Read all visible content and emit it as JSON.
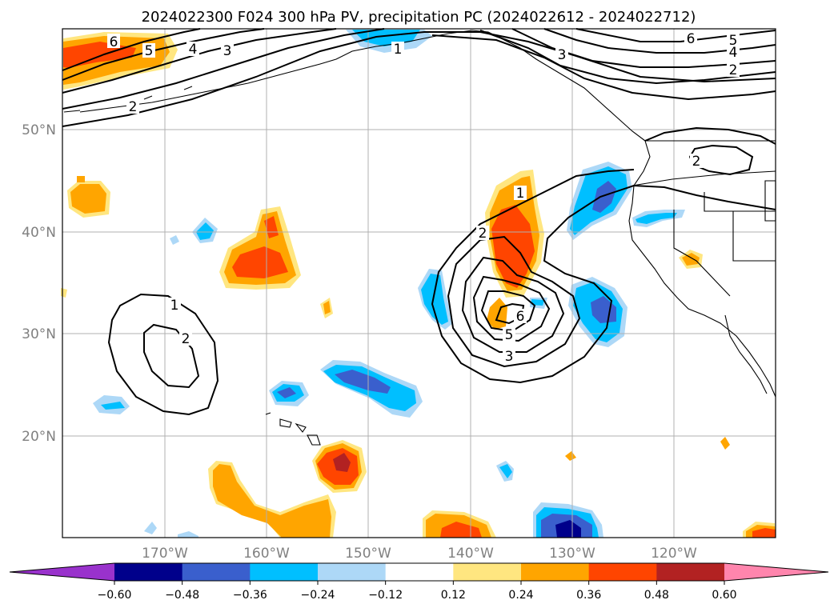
{
  "title": "2024022300 F024 300 hPa PV, precipitation PC (2024022612 - 2024022712)",
  "latitude_labels": [
    "50°N",
    "40°N",
    "30°N",
    "20°N"
  ],
  "longitude_labels": [
    "170°W",
    "160°W",
    "150°W",
    "140°W",
    "130°W",
    "120°W"
  ],
  "colorbar": {
    "tick_labels": [
      "−0.60",
      "−0.48",
      "−0.36",
      "−0.24",
      "−0.12",
      "0.12",
      "0.24",
      "0.36",
      "0.48",
      "0.60"
    ],
    "colors": [
      "#9932cc",
      "#00008b",
      "#3a5fcd",
      "#00bfff",
      "#add8f7",
      "#ffffff",
      "#ffe680",
      "#ffa500",
      "#ff4500",
      "#b22222",
      "#ff85ad"
    ]
  },
  "pv_contour_labels": {
    "north_jet": [
      "6",
      "5",
      "4",
      "3",
      "2"
    ],
    "northeast_jet": [
      "1",
      "6",
      "5",
      "4",
      "3",
      "2"
    ],
    "cutoff_low_east": [
      "1",
      "2",
      "6",
      "5",
      "3"
    ],
    "cutoff_low_west": [
      "1",
      "2"
    ],
    "inland": [
      "2"
    ]
  }
}
